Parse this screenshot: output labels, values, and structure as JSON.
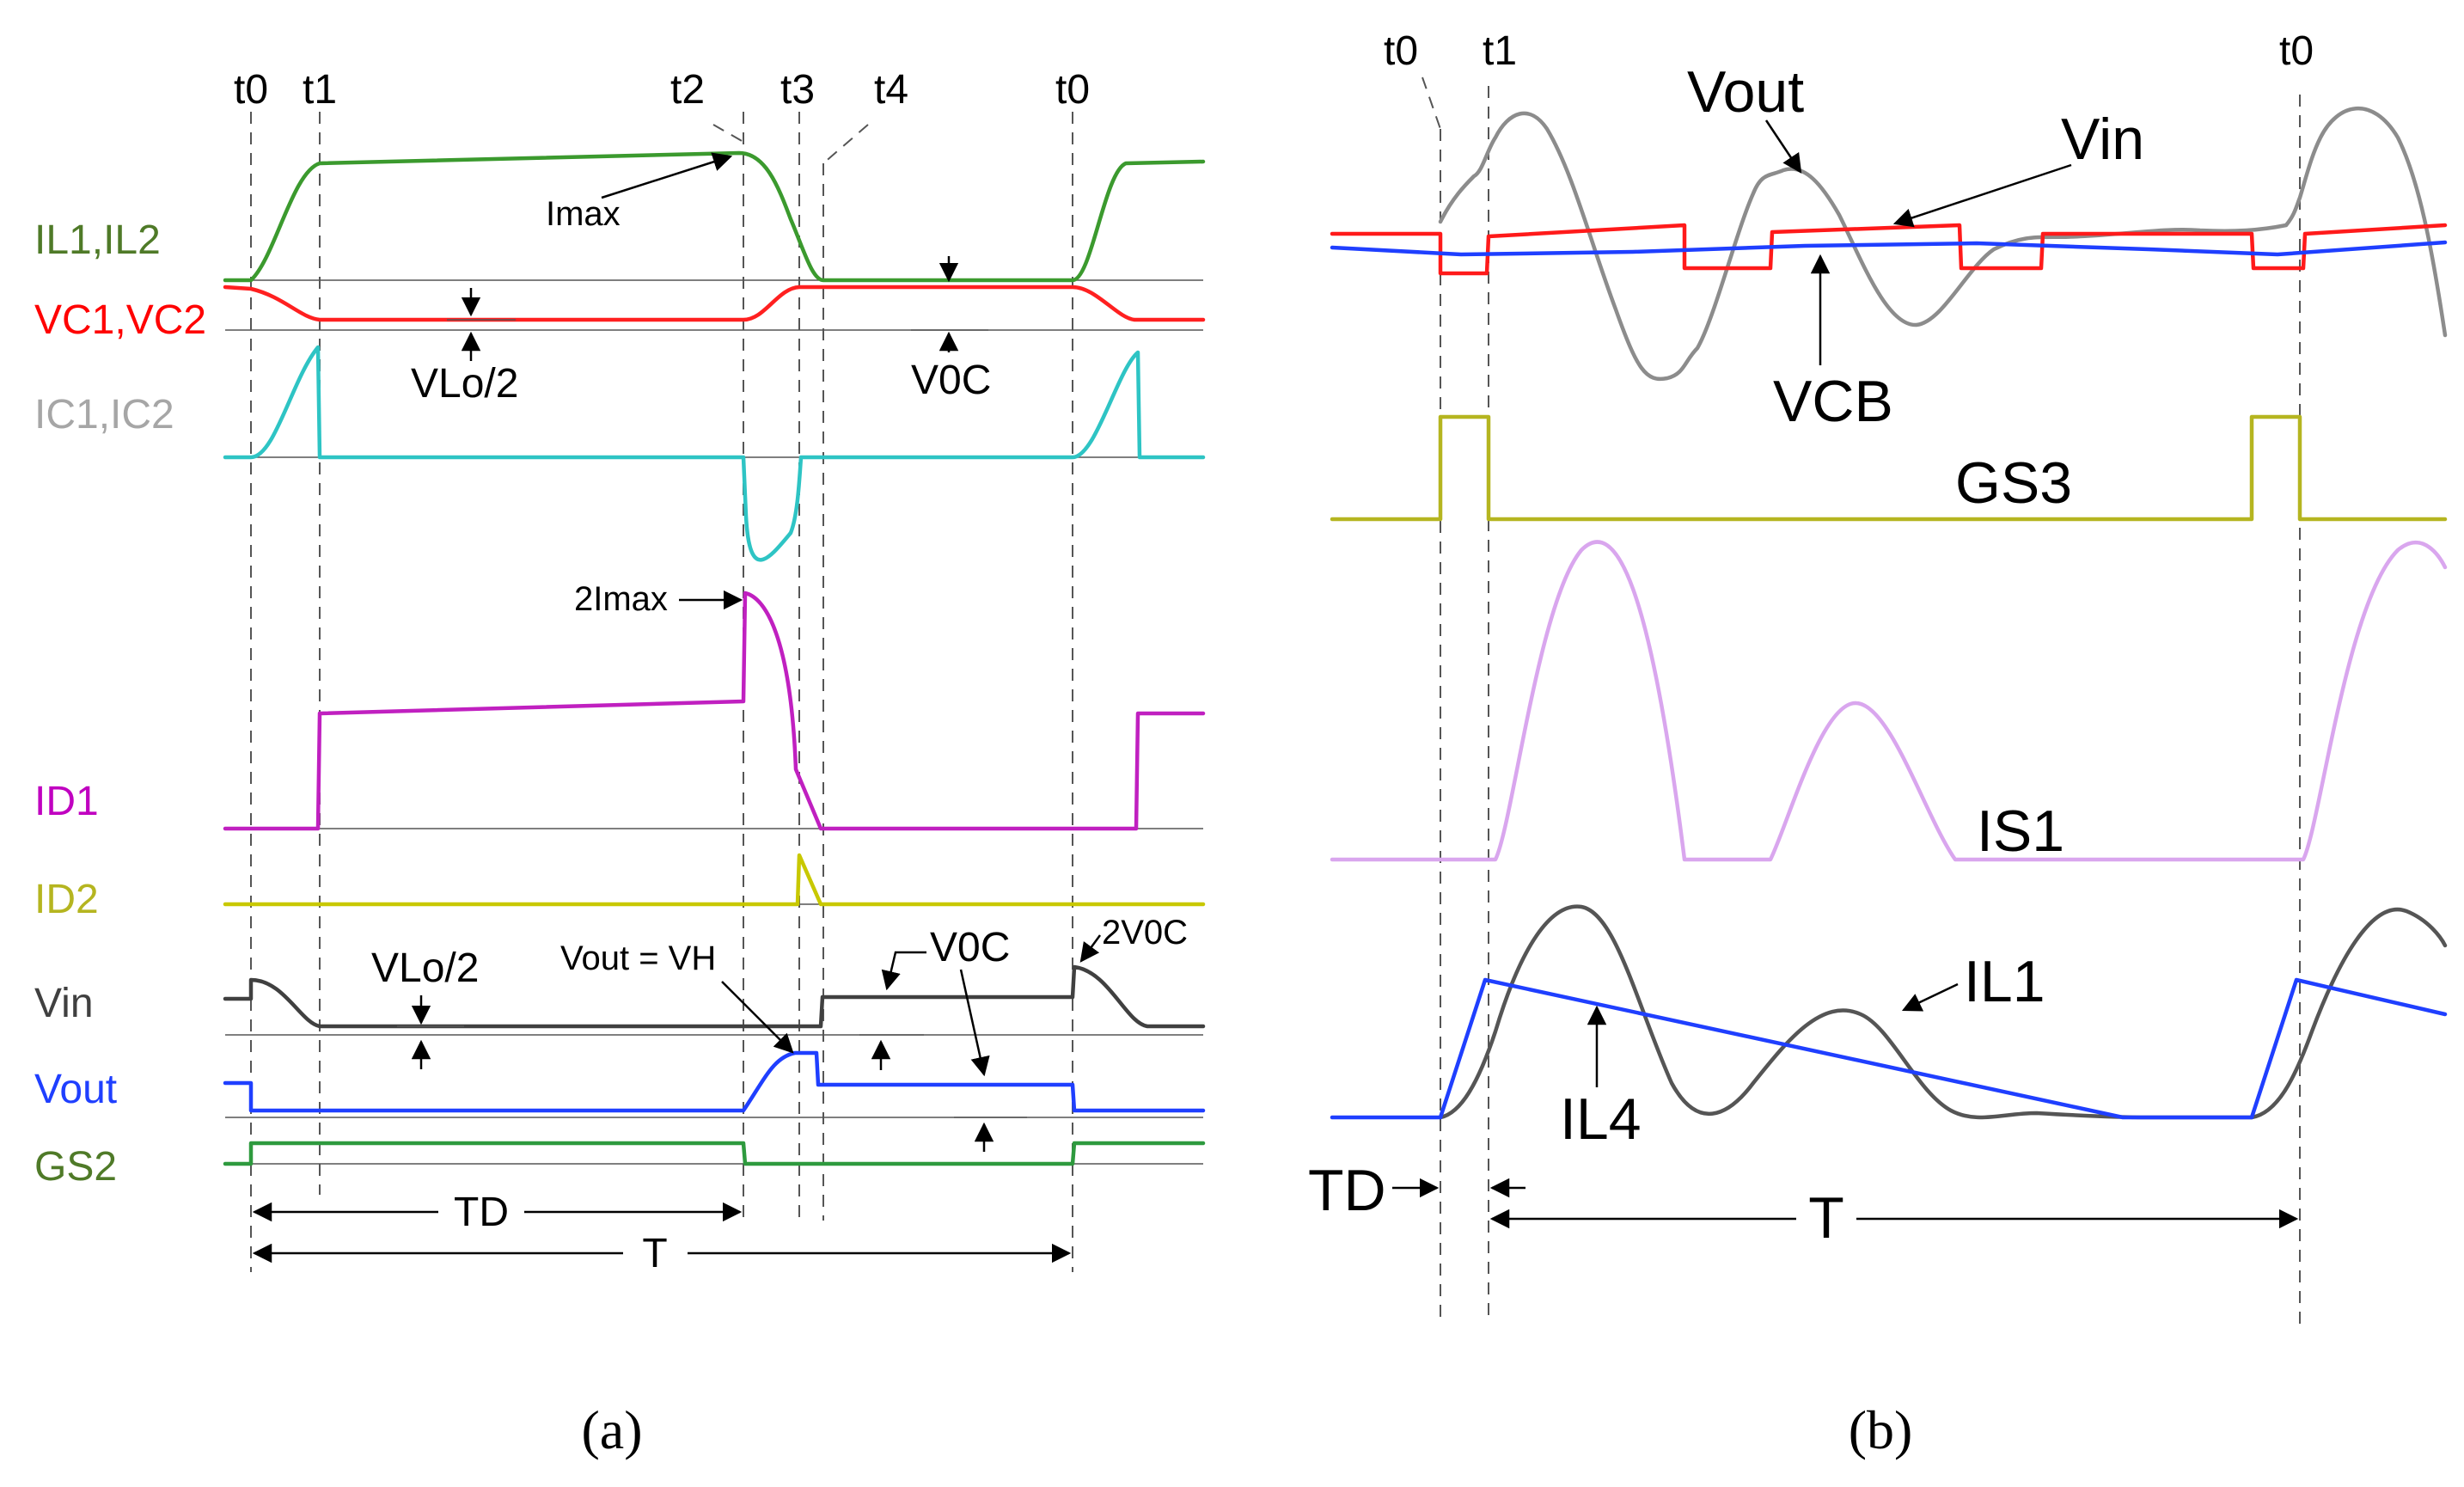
{
  "panel_a": {
    "caption": "(a)",
    "time_labels": [
      "t0",
      "t1",
      "t2",
      "t3",
      "t4",
      "t0"
    ],
    "signals": [
      {
        "id": "il",
        "label": "IL1,IL2",
        "color": "#4f7a28"
      },
      {
        "id": "vc",
        "label": "VC1,VC2",
        "color": "#ff0000"
      },
      {
        "id": "ic",
        "label": "IC1,IC2",
        "color": "#a6a6a6"
      },
      {
        "id": "id1",
        "label": "ID1",
        "color": "#c000c0"
      },
      {
        "id": "id2",
        "label": "ID2",
        "color": "#b5b520"
      },
      {
        "id": "vin",
        "label": "Vin",
        "color": "#404040"
      },
      {
        "id": "vout",
        "label": "Vout",
        "color": "#1f3fff"
      },
      {
        "id": "gs2",
        "label": "GS2",
        "color": "#4f7a28"
      }
    ],
    "wave_colors": {
      "il": "#3b9a2e",
      "vc": "#ff2020",
      "ic": "#2ec4c4",
      "id1": "#c020c0",
      "id2": "#c8c800",
      "vin": "#404040",
      "vout": "#1f3fff",
      "gs2": "#2e9a3e"
    },
    "annotations": {
      "imax": "Imax",
      "two_imax": "2Imax",
      "vlo_half_1": "VLo/2",
      "v0c_1": "V0C",
      "vlo_half_2": "VLo/2",
      "vout_eq_vh": "Vout = VH",
      "v0c_2": "V0C",
      "two_v0c": "2V0C",
      "td": "TD",
      "t": "T"
    }
  },
  "panel_b": {
    "caption": "(b)",
    "time_labels": [
      "t0",
      "t1",
      "t0"
    ],
    "labels": {
      "vout": "Vout",
      "vin": "Vin",
      "vcb": "VCB",
      "gs3": "GS3",
      "is1": "IS1",
      "il1": "IL1",
      "il4": "IL4",
      "td": "TD",
      "t": "T"
    },
    "wave_colors": {
      "vout": "#8c8c8c",
      "vin": "#ff1a1a",
      "vcb": "#1f3fff",
      "gs3": "#b5b520",
      "is1": "#d9a6ee",
      "il1": "#555555",
      "il4": "#1f3fff"
    }
  }
}
